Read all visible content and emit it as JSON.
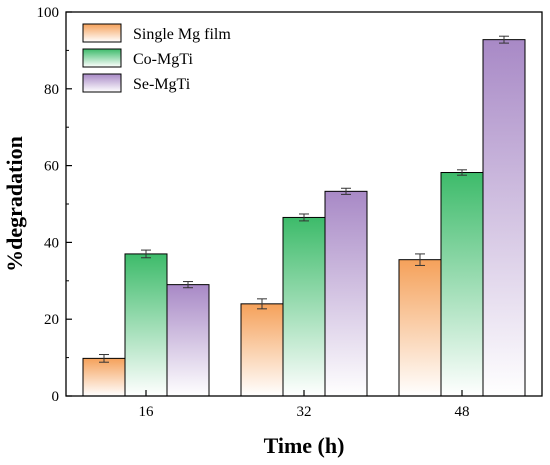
{
  "chart_data": {
    "type": "bar",
    "title": "",
    "xlabel": "Time (h)",
    "ylabel": "%degradation",
    "categories": [
      "16",
      "32",
      "48"
    ],
    "ylim": [
      0,
      100
    ],
    "yticks": [
      0,
      20,
      40,
      60,
      80,
      100
    ],
    "grid": false,
    "legend_position": "top-left",
    "series": [
      {
        "name": "Single Mg film",
        "values": [
          9.8,
          24.0,
          35.5
        ],
        "errors": [
          1.0,
          1.3,
          1.5
        ],
        "color": "#f5a15a"
      },
      {
        "name": "Co-MgTi",
        "values": [
          37.0,
          46.5,
          58.2
        ],
        "errors": [
          1.0,
          0.9,
          0.7
        ],
        "color": "#3dbb6a"
      },
      {
        "name": "Se-MgTi",
        "values": [
          29.0,
          53.3,
          92.8
        ],
        "errors": [
          0.8,
          0.8,
          0.9
        ],
        "color": "#a889c6"
      }
    ]
  }
}
